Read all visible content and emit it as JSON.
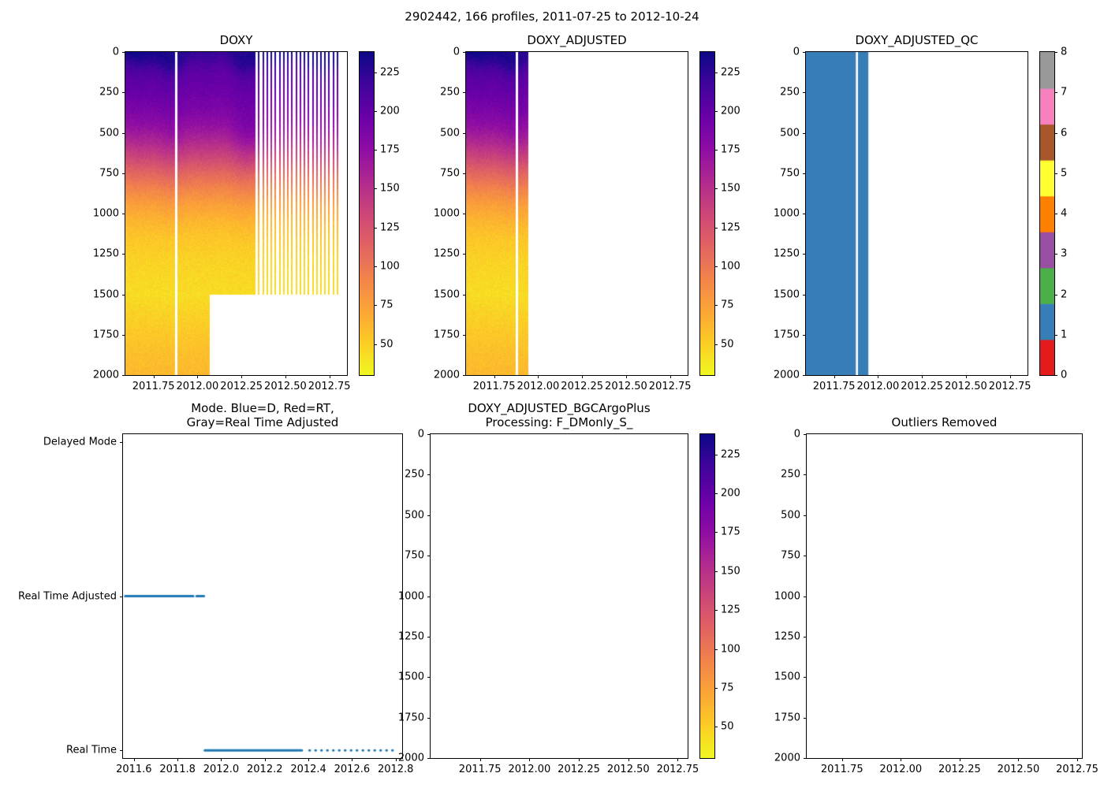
{
  "figure": {
    "title": "2902442, 166 profiles, 2011-07-25 to 2012-10-24",
    "background": "#ffffff"
  },
  "colormaps": {
    "plasma_r_stops": [
      "#0d0887",
      "#41049d",
      "#6a00a8",
      "#8f0da4",
      "#b12a90",
      "#cc4778",
      "#e16462",
      "#f2844b",
      "#fca636",
      "#fcce25",
      "#f0f921"
    ],
    "qc_set1": [
      "#e41a1c",
      "#377eb8",
      "#4daf4a",
      "#984ea3",
      "#ff7f00",
      "#ffff33",
      "#a65628",
      "#f781bf",
      "#999999"
    ]
  },
  "line_color": "#1f77b4",
  "chart_data": [
    {
      "id": "doxy",
      "type": "heatmap",
      "title": "DOXY",
      "xlim": [
        2011.59,
        2012.85
      ],
      "ylim": [
        0,
        2000
      ],
      "x_ticks": {
        "values": [
          2011.75,
          2012.0,
          2012.25,
          2012.5,
          2012.75
        ],
        "labels": [
          "2011.75",
          "2012.00",
          "2012.25",
          "2012.50",
          "2012.75"
        ]
      },
      "y_ticks": {
        "values": [
          0,
          250,
          500,
          750,
          1000,
          1250,
          1500,
          1750,
          2000
        ],
        "labels": [
          "0",
          "250",
          "500",
          "750",
          "1000",
          "1250",
          "1500",
          "1750",
          "2000"
        ]
      },
      "value_range": [
        30,
        238
      ],
      "colormap": "plasma_r_stops",
      "profile": {
        "depths": [
          0,
          50,
          100,
          150,
          250,
          350,
          450,
          550,
          650,
          750,
          850,
          950,
          1050,
          1150,
          1300,
          1500,
          1700,
          1850,
          2000
        ],
        "values": [
          232,
          225,
          213,
          205,
          197,
          188,
          176,
          158,
          136,
          112,
          92,
          75,
          63,
          55,
          48,
          44,
          52,
          58,
          62
        ]
      },
      "segments": [
        {
          "x0": 2011.56,
          "x1": 2011.874,
          "depth_max": 2000,
          "style": "dense"
        },
        {
          "x0": 2011.886,
          "x1": 2012.07,
          "depth_max": 2000,
          "style": "dense"
        },
        {
          "x0": 2012.07,
          "x1": 2012.33,
          "depth_max": 1500,
          "style": "dense"
        },
        {
          "x0": 2012.345,
          "x1": 2012.81,
          "depth_max": 1500,
          "style": "stripes",
          "interval": 0.0235,
          "stripe_width": 0.007
        }
      ],
      "colorbar": {
        "kind": "gradient",
        "ticks": {
          "values": [
            50,
            75,
            100,
            125,
            150,
            175,
            200,
            225
          ],
          "labels": [
            "50",
            "75",
            "100",
            "125",
            "150",
            "175",
            "200",
            "225"
          ]
        }
      }
    },
    {
      "id": "doxy_adjusted",
      "type": "heatmap",
      "title": "DOXY_ADJUSTED",
      "xlim": [
        2011.59,
        2012.85
      ],
      "ylim": [
        0,
        2000
      ],
      "x_ticks": {
        "values": [
          2011.75,
          2012.0,
          2012.25,
          2012.5,
          2012.75
        ],
        "labels": [
          "2011.75",
          "2012.00",
          "2012.25",
          "2012.50",
          "2012.75"
        ]
      },
      "y_ticks": {
        "values": [
          0,
          250,
          500,
          750,
          1000,
          1250,
          1500,
          1750,
          2000
        ],
        "labels": [
          "0",
          "250",
          "500",
          "750",
          "1000",
          "1250",
          "1500",
          "1750",
          "2000"
        ]
      },
      "value_range": [
        30,
        238
      ],
      "colormap": "plasma_r_stops",
      "profile": {
        "depths": [
          0,
          50,
          100,
          150,
          250,
          350,
          450,
          550,
          650,
          750,
          850,
          950,
          1050,
          1150,
          1300,
          1500,
          1700,
          1850,
          2000
        ],
        "values": [
          232,
          225,
          213,
          205,
          197,
          188,
          176,
          158,
          136,
          112,
          92,
          75,
          63,
          55,
          48,
          44,
          52,
          58,
          62
        ]
      },
      "segments": [
        {
          "x0": 2011.56,
          "x1": 2011.874,
          "depth_max": 2000,
          "style": "dense"
        },
        {
          "x0": 2011.886,
          "x1": 2011.945,
          "depth_max": 2000,
          "style": "dense"
        }
      ],
      "colorbar": {
        "kind": "gradient",
        "ticks": {
          "values": [
            50,
            75,
            100,
            125,
            150,
            175,
            200,
            225
          ],
          "labels": [
            "50",
            "75",
            "100",
            "125",
            "150",
            "175",
            "200",
            "225"
          ]
        }
      }
    },
    {
      "id": "doxy_adjusted_qc",
      "type": "qc",
      "title": "DOXY_ADJUSTED_QC",
      "xlim": [
        2011.59,
        2012.85
      ],
      "ylim": [
        0,
        2000
      ],
      "x_ticks": {
        "values": [
          2011.75,
          2012.0,
          2012.25,
          2012.5,
          2012.75
        ],
        "labels": [
          "2011.75",
          "2012.00",
          "2012.25",
          "2012.50",
          "2012.75"
        ]
      },
      "y_ticks": {
        "values": [
          0,
          250,
          500,
          750,
          1000,
          1250,
          1500,
          1750,
          2000
        ],
        "labels": [
          "0",
          "250",
          "500",
          "750",
          "1000",
          "1250",
          "1500",
          "1750",
          "2000"
        ]
      },
      "flag_value": 1,
      "flag_color_index": 1,
      "segments": [
        {
          "x0": 2011.56,
          "x1": 2011.874,
          "depth_max": 2000
        },
        {
          "x0": 2011.886,
          "x1": 2011.945,
          "depth_max": 2000
        }
      ],
      "colorbar": {
        "kind": "discrete",
        "colors": "qc_set1",
        "range": [
          0,
          8
        ],
        "ticks": {
          "values": [
            0,
            1,
            2,
            3,
            4,
            5,
            6,
            7,
            8
          ],
          "labels": [
            "0",
            "1",
            "2",
            "3",
            "4",
            "5",
            "6",
            "7",
            "8"
          ]
        }
      }
    },
    {
      "id": "mode",
      "type": "line",
      "title": "Mode. Blue=D, Red=RT,\nGray=Real Time Adjusted",
      "xlim": [
        2011.55,
        2012.83
      ],
      "ylim": [
        2.05,
        -0.05
      ],
      "x_ticks": {
        "values": [
          2011.6,
          2011.8,
          2012.0,
          2012.2,
          2012.4,
          2012.6,
          2012.8
        ],
        "labels": [
          "2011.6",
          "2011.8",
          "2012.0",
          "2012.2",
          "2012.4",
          "2012.6",
          "2012.8"
        ]
      },
      "y_ticks": {
        "values": [
          2,
          1,
          0
        ],
        "labels": [
          "Delayed Mode",
          "Real Time Adjusted",
          "Real Time"
        ]
      },
      "segments": [
        {
          "label": "Real Time Adjusted",
          "y": 1,
          "x0": 2011.56,
          "x1": 2011.872,
          "style": "solid"
        },
        {
          "label": "Real Time Adjusted",
          "y": 1,
          "x0": 2011.887,
          "x1": 2011.921,
          "style": "solid"
        },
        {
          "label": "Real Time",
          "y": 0,
          "x0": 2011.925,
          "x1": 2012.37,
          "style": "solid"
        },
        {
          "label": "Real Time",
          "y": 0,
          "x0": 2012.405,
          "x1": 2012.81,
          "style": "dotted"
        }
      ]
    },
    {
      "id": "doxy_adjusted_bgcargoplus",
      "type": "heatmap",
      "title": "DOXY_ADJUSTED_BGCArgoPlus\nProcessing: F_DMonly_S_",
      "xlim": [
        2011.5,
        2012.8
      ],
      "ylim": [
        0,
        2000
      ],
      "x_ticks": {
        "values": [
          2011.75,
          2012.0,
          2012.25,
          2012.5,
          2012.75
        ],
        "labels": [
          "2011.75",
          "2012.00",
          "2012.25",
          "2012.50",
          "2012.75"
        ]
      },
      "y_ticks": {
        "values": [
          0,
          250,
          500,
          750,
          1000,
          1250,
          1500,
          1750,
          2000
        ],
        "labels": [
          "0",
          "250",
          "500",
          "750",
          "1000",
          "1250",
          "1500",
          "1750",
          "2000"
        ]
      },
      "value_range": [
        30,
        238
      ],
      "colormap": "plasma_r_stops",
      "segments": [],
      "colorbar": {
        "kind": "gradient",
        "ticks": {
          "values": [
            50,
            75,
            100,
            125,
            150,
            175,
            200,
            225
          ],
          "labels": [
            "50",
            "75",
            "100",
            "125",
            "150",
            "175",
            "200",
            "225"
          ]
        }
      }
    },
    {
      "id": "outliers_removed",
      "type": "heatmap",
      "title": "Outliers Removed",
      "xlim": [
        2011.6,
        2012.77
      ],
      "ylim": [
        0,
        2000
      ],
      "x_ticks": {
        "values": [
          2011.75,
          2012.0,
          2012.25,
          2012.5,
          2012.75
        ],
        "labels": [
          "2011.75",
          "2012.00",
          "2012.25",
          "2012.50",
          "2012.75"
        ]
      },
      "y_ticks": {
        "values": [
          0,
          250,
          500,
          750,
          1000,
          1250,
          1500,
          1750,
          2000
        ],
        "labels": [
          "0",
          "250",
          "500",
          "750",
          "1000",
          "1250",
          "1500",
          "1750",
          "2000"
        ]
      },
      "segments": []
    }
  ]
}
